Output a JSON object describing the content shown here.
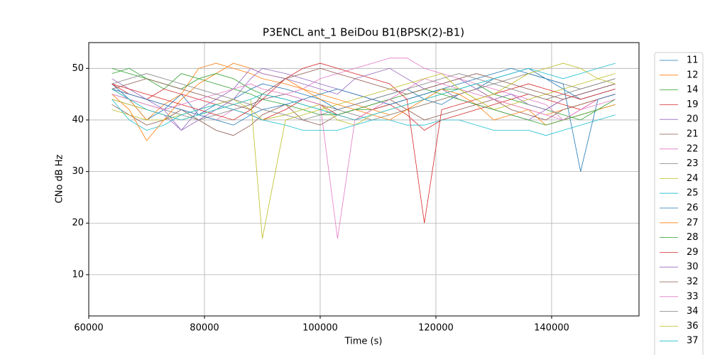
{
  "chart_data": {
    "type": "line",
    "title": "P3ENCL ant_1 BeiDou B1(BPSK(2)-B1)",
    "xlabel": "Time (s)",
    "ylabel": "CNo dB Hz",
    "xlim": [
      60000,
      155100
    ],
    "ylim": [
      2,
      55
    ],
    "xticks": [
      60000,
      80000,
      100000,
      120000,
      140000
    ],
    "yticks": [
      10,
      20,
      30,
      40,
      50
    ],
    "grid": true,
    "x": [
      64000,
      67000,
      70000,
      73000,
      76000,
      79000,
      82000,
      85000,
      88000,
      90000,
      94000,
      97000,
      100000,
      103000,
      106000,
      109000,
      112000,
      115000,
      118000,
      121000,
      124000,
      127000,
      130000,
      133000,
      136000,
      139000,
      142000,
      145000,
      148000,
      151000
    ],
    "series": [
      {
        "name": "11",
        "color": "#1f77b4",
        "values": [
          47,
          44,
          40,
          42,
          45,
          41,
          43,
          44,
          46,
          47,
          46,
          45,
          44,
          42,
          43,
          44,
          45,
          46,
          44,
          43,
          45,
          46,
          48,
          49,
          50,
          48,
          46,
          44,
          45,
          46
        ]
      },
      {
        "name": "12",
        "color": "#ff7f0e",
        "values": [
          46,
          44,
          40,
          43,
          45,
          50,
          51,
          50,
          49,
          48,
          47,
          46,
          45,
          44,
          43,
          42,
          41,
          42,
          43,
          44,
          45,
          46,
          44,
          43,
          42,
          41,
          42,
          43,
          44,
          45
        ]
      },
      {
        "name": "14",
        "color": "#2ca02c",
        "values": [
          49,
          50,
          48,
          46,
          49,
          48,
          47,
          46,
          45,
          44,
          43,
          42,
          41,
          41,
          42,
          42,
          43,
          44,
          45,
          46,
          46,
          47,
          45,
          44,
          43,
          42,
          41,
          40,
          42,
          43
        ]
      },
      {
        "name": "19",
        "color": "#d62728",
        "values": [
          47,
          45,
          44,
          46,
          45,
          44,
          43,
          42,
          41,
          40,
          42,
          44,
          43,
          41,
          40,
          42,
          43,
          41,
          38,
          40,
          41,
          42,
          43,
          44,
          45,
          44,
          43,
          42,
          44,
          45
        ]
      },
      {
        "name": "20",
        "color": "#9467bd",
        "values": [
          48,
          46,
          44,
          42,
          38,
          40,
          42,
          44,
          48,
          50,
          49,
          48,
          47,
          46,
          45,
          44,
          43,
          44,
          45,
          46,
          44,
          43,
          42,
          41,
          40,
          42,
          44,
          45,
          46,
          47
        ]
      },
      {
        "name": "21",
        "color": "#8c564b",
        "values": [
          43,
          41,
          39,
          40,
          42,
          40,
          38,
          37,
          39,
          41,
          43,
          40,
          39,
          41,
          42,
          43,
          44,
          42,
          40,
          41,
          42,
          43,
          44,
          42,
          41,
          40,
          42,
          43,
          44,
          45
        ]
      },
      {
        "name": "22",
        "color": "#e377c2",
        "values": [
          46,
          45,
          44,
          43,
          42,
          41,
          40,
          42,
          43,
          44,
          45,
          46,
          48,
          49,
          50,
          51,
          52,
          52,
          50,
          49,
          48,
          47,
          46,
          45,
          44,
          43,
          40,
          42,
          44,
          45
        ]
      },
      {
        "name": "23",
        "color": "#7f7f7f",
        "values": [
          45,
          44,
          43,
          42,
          41,
          40,
          41,
          42,
          43,
          44,
          45,
          44,
          43,
          42,
          41,
          40,
          41,
          42,
          43,
          44,
          45,
          46,
          47,
          48,
          49,
          48,
          47,
          46,
          47,
          48
        ]
      },
      {
        "name": "24",
        "color": "#bcbd22",
        "values": [
          42,
          41,
          40,
          40,
          41,
          42,
          43,
          44,
          42,
          40,
          41,
          42,
          43,
          40,
          39,
          41,
          42,
          43,
          44,
          45,
          46,
          44,
          42,
          43,
          44,
          45,
          46,
          47,
          48,
          49
        ]
      },
      {
        "name": "25",
        "color": "#17becf",
        "values": [
          44,
          40,
          38,
          39,
          41,
          42,
          43,
          42,
          41,
          40,
          39,
          38,
          38,
          38,
          39,
          40,
          40,
          39,
          39,
          40,
          40,
          39,
          38,
          38,
          38,
          37,
          38,
          39,
          40,
          41
        ]
      },
      {
        "name": "26",
        "color": "#1f77b4",
        "values": [
          46,
          45,
          44,
          43,
          42,
          41,
          40,
          39,
          41,
          42,
          43,
          44,
          45,
          46,
          45,
          44,
          43,
          44,
          45,
          46,
          47,
          48,
          49,
          50,
          49,
          48,
          47,
          30,
          44,
          45
        ]
      },
      {
        "name": "27",
        "color": "#ff7f0e",
        "values": [
          45,
          42,
          36,
          40,
          44,
          47,
          49,
          51,
          50,
          49,
          48,
          46,
          44,
          43,
          42,
          41,
          40,
          42,
          44,
          46,
          45,
          43,
          40,
          41,
          42,
          39,
          40,
          41,
          42,
          43
        ]
      },
      {
        "name": "28",
        "color": "#2ca02c",
        "values": [
          50,
          49,
          48,
          47,
          46,
          48,
          49,
          48,
          46,
          45,
          44,
          43,
          42,
          41,
          42,
          43,
          44,
          45,
          46,
          45,
          44,
          43,
          42,
          41,
          40,
          39,
          40,
          41,
          42,
          44
        ]
      },
      {
        "name": "29",
        "color": "#d62728",
        "values": [
          47,
          46,
          45,
          44,
          43,
          42,
          41,
          40,
          42,
          44,
          48,
          50,
          51,
          50,
          49,
          48,
          47,
          44,
          20,
          42,
          43,
          44,
          45,
          46,
          47,
          46,
          45,
          44,
          45,
          46
        ]
      },
      {
        "name": "30",
        "color": "#9467bd",
        "values": [
          44,
          43,
          42,
          41,
          38,
          42,
          44,
          46,
          50,
          49,
          48,
          47,
          46,
          45,
          48,
          49,
          50,
          48,
          46,
          47,
          48,
          46,
          44,
          45,
          43,
          42,
          44,
          45,
          46,
          47
        ]
      },
      {
        "name": "32",
        "color": "#8c564b",
        "values": [
          46,
          47,
          48,
          47,
          46,
          45,
          44,
          43,
          42,
          45,
          48,
          49,
          50,
          49,
          48,
          47,
          46,
          45,
          46,
          47,
          48,
          49,
          48,
          47,
          46,
          45,
          44,
          45,
          46,
          47
        ]
      },
      {
        "name": "33",
        "color": "#e377c2",
        "values": [
          45,
          44,
          43,
          42,
          43,
          44,
          45,
          46,
          47,
          46,
          45,
          44,
          43,
          17,
          40,
          42,
          44,
          46,
          48,
          47,
          46,
          45,
          44,
          43,
          42,
          41,
          40,
          42,
          43,
          44
        ]
      },
      {
        "name": "34",
        "color": "#7f7f7f",
        "values": [
          47,
          48,
          49,
          48,
          47,
          46,
          45,
          44,
          43,
          42,
          41,
          40,
          41,
          42,
          43,
          44,
          45,
          46,
          47,
          48,
          49,
          48,
          47,
          46,
          45,
          44,
          45,
          46,
          47,
          48
        ]
      },
      {
        "name": "36",
        "color": "#bcbd22",
        "values": [
          44,
          43,
          42,
          41,
          40,
          41,
          42,
          43,
          44,
          17,
          40,
          41,
          42,
          43,
          44,
          45,
          46,
          47,
          48,
          49,
          46,
          44,
          45,
          47,
          49,
          50,
          51,
          50,
          48,
          47
        ]
      },
      {
        "name": "37",
        "color": "#17becf",
        "values": [
          46,
          44,
          42,
          41,
          40,
          41,
          42,
          43,
          44,
          45,
          44,
          43,
          42,
          41,
          40,
          41,
          42,
          43,
          44,
          45,
          46,
          47,
          48,
          49,
          50,
          49,
          48,
          49,
          50,
          51
        ]
      }
    ]
  }
}
